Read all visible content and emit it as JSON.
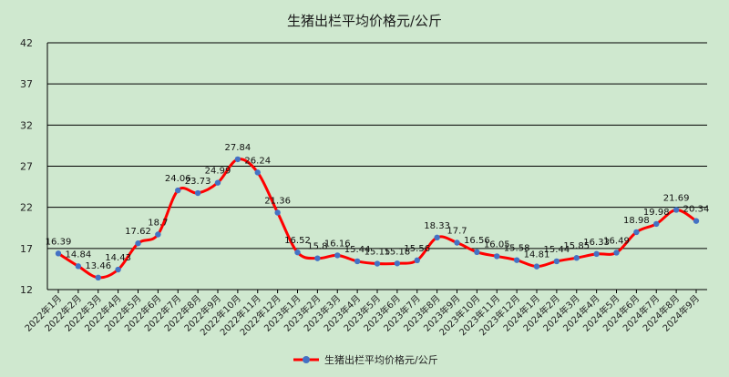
{
  "chart_data": {
    "type": "line",
    "title": "生猪出栏平均价格元/公斤",
    "xlabel": "",
    "ylabel": "",
    "ylim": [
      12,
      42
    ],
    "yticks": [
      12,
      17,
      22,
      27,
      32,
      37,
      42
    ],
    "grid": true,
    "legend_position": "bottom",
    "series_color": "#ff0000",
    "marker_color": "#4472c4",
    "categories": [
      "2022年1月",
      "2022年2月",
      "2022年3月",
      "2022年4月",
      "2022年5月",
      "2022年6月",
      "2022年7月",
      "2022年8月",
      "2022年9月",
      "2022年10月",
      "2022年11月",
      "2022年12月",
      "2023年1月",
      "2023年2月",
      "2023年3月",
      "2023年4月",
      "2023年5月",
      "2023年6月",
      "2023年7月",
      "2023年8月",
      "2023年9月",
      "2023年10月",
      "2023年11月",
      "2023年12月",
      "2024年1月",
      "2024年2月",
      "2024年3月",
      "2024年4月",
      "2024年5月",
      "2024年6月",
      "2024年7月",
      "2024年8月",
      "2024年9月"
    ],
    "series": [
      {
        "name": "生猪出栏平均价格元/公斤",
        "values": [
          16.39,
          14.84,
          13.46,
          14.43,
          17.62,
          18.7,
          24.06,
          23.73,
          24.99,
          27.84,
          26.24,
          21.36,
          16.52,
          15.8,
          16.16,
          15.44,
          15.15,
          15.18,
          15.56,
          18.33,
          17.7,
          16.56,
          16.05,
          15.58,
          14.81,
          15.44,
          15.85,
          16.33,
          16.49,
          18.98,
          19.98,
          21.69,
          20.34
        ]
      }
    ]
  }
}
